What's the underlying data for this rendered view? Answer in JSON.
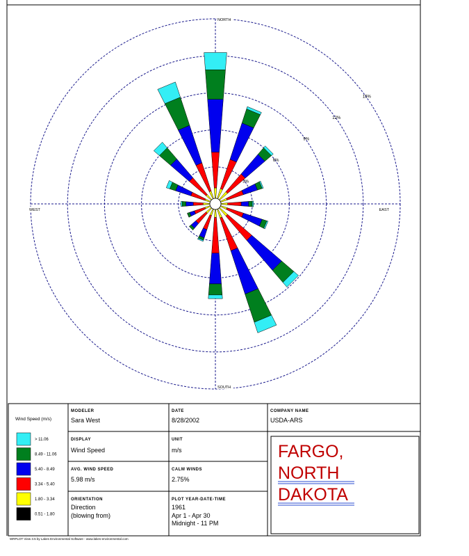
{
  "chart_data": {
    "type": "windrose",
    "categories": [
      "NORTH",
      null,
      null,
      null,
      "EAST",
      null,
      null,
      null,
      "SOUTH",
      null,
      null,
      null,
      "WEST",
      null,
      null,
      null
    ],
    "series": [
      {
        "name": "> 11.06",
        "color": "#33eef5",
        "values": [
          1.4,
          0.2,
          0.2,
          0.1,
          0.1,
          0.1,
          0.5,
          0.9,
          0.3,
          0.1,
          0.0,
          0.0,
          0.1,
          0.3,
          0.6,
          1.3
        ]
      },
      {
        "name": "8.49 - 11.06",
        "color": "#007f1e",
        "values": [
          2.4,
          1.2,
          0.7,
          0.4,
          0.3,
          0.4,
          1.3,
          2.4,
          0.9,
          0.2,
          0.2,
          0.2,
          0.3,
          0.5,
          1.2,
          2.4
        ]
      },
      {
        "name": "5.40 - 8.49",
        "color": "#0000ee",
        "values": [
          4.3,
          3.1,
          2.1,
          1.2,
          0.6,
          1.6,
          3.2,
          3.7,
          2.5,
          0.7,
          0.5,
          0.4,
          0.6,
          1.3,
          2.0,
          3.2
        ]
      },
      {
        "name": "3.34 - 5.40",
        "color": "#ff0000",
        "values": [
          2.9,
          2.5,
          1.9,
          1.4,
          1.1,
          1.4,
          2.6,
          2.8,
          2.9,
          1.2,
          1.1,
          0.9,
          0.8,
          1.2,
          1.8,
          2.4
        ]
      },
      {
        "name": "1.80 - 3.34",
        "color": "#ffff00",
        "values": [
          1.2,
          1.2,
          1.2,
          0.9,
          0.9,
          0.9,
          1.2,
          1.1,
          1.0,
          0.9,
          0.9,
          0.8,
          0.9,
          0.8,
          0.9,
          1.0
        ]
      },
      {
        "name": "0.51 - 1.80",
        "color": "#000000",
        "values": [
          0.1,
          0.1,
          0.1,
          0.1,
          0.1,
          0.1,
          0.1,
          0.1,
          0.1,
          0.1,
          0.1,
          0.1,
          0.1,
          0.1,
          0.1,
          0.1
        ]
      }
    ],
    "rlim": [
      0,
      15
    ],
    "rticks": [
      {
        "value": 3,
        "label": "3%"
      },
      {
        "value": 6,
        "label": "6%"
      },
      {
        "value": 9,
        "label": "9%"
      },
      {
        "value": 12,
        "label": "12%"
      },
      {
        "value": 15,
        "label": "15%"
      }
    ],
    "grid": true,
    "legend_title": "Wind Speed (m/s)"
  },
  "info": {
    "modeler_label": "MODELER",
    "modeler": "Sara West",
    "date_label": "DATE",
    "date": "8/28/2002",
    "company_label": "COMPANY NAME",
    "company": "USDA-ARS",
    "display_label": "DISPLAY",
    "display": "Wind Speed",
    "unit_label": "UNIT",
    "unit": "m/s",
    "avg_label": "AVG. WIND SPEED",
    "avg": "5.98 m/s",
    "calm_label": "CALM WINDS",
    "calm": "2.75%",
    "orientation_label": "ORIENTATION",
    "orientation": [
      "Direction",
      "(blowing from)"
    ],
    "plot_label": "PLOT YEAR-DATE-TIME",
    "plot": [
      "1961",
      "Apr 1 - Apr 30",
      "Midnight - 11 PM"
    ],
    "place": [
      "FARGO,",
      "NORTH",
      "DAKOTA"
    ]
  },
  "footer": "WRPLOT View 3.5 by Lakes Environmental Software - www.lakes-environmental.com"
}
